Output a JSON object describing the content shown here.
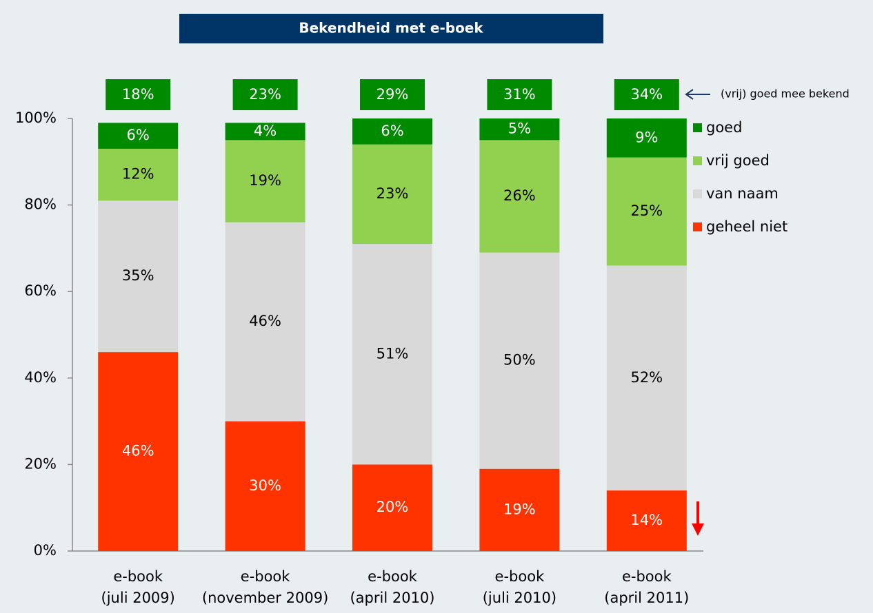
{
  "chart_data": {
    "type": "stacked_bar",
    "title": "Bekendheid met e-boek",
    "categories": [
      [
        "e-book",
        "(juli 2009)"
      ],
      [
        "e-book",
        "(november 2009)"
      ],
      [
        "e-book",
        "(april 2010)"
      ],
      [
        "e-book",
        "(juli 2010)"
      ],
      [
        "e-book",
        "(april 2011)"
      ]
    ],
    "series": [
      {
        "name": "geheel niet",
        "color": "#ff3300",
        "values": [
          46,
          30,
          20,
          19,
          14
        ],
        "value_labels": [
          "46%",
          "30%",
          "20%",
          "19%",
          "14%"
        ]
      },
      {
        "name": "van naam",
        "color": "#d9d9d9",
        "values": [
          35,
          46,
          51,
          50,
          52
        ],
        "value_labels": [
          "35%",
          "46%",
          "51%",
          "50%",
          "52%"
        ]
      },
      {
        "name": "vrij goed",
        "color": "#92d050",
        "values": [
          12,
          19,
          23,
          26,
          25
        ],
        "value_labels": [
          "12%",
          "19%",
          "23%",
          "26%",
          "25%"
        ]
      },
      {
        "name": "goed",
        "color": "#008a00",
        "values": [
          6,
          4,
          6,
          5,
          9
        ],
        "value_labels": [
          "6%",
          "4%",
          "6%",
          "5%",
          "9%"
        ]
      }
    ],
    "totals": {
      "values": [
        18,
        23,
        29,
        31,
        34
      ],
      "value_labels": [
        "18%",
        "23%",
        "29%",
        "31%",
        "34%"
      ],
      "color": "#008a00"
    },
    "annotation": "(vrij) goed mee bekend",
    "ylim": [
      0,
      100
    ],
    "yticks": [
      {
        "value": 0,
        "label": "0%"
      },
      {
        "value": 20,
        "label": "20%"
      },
      {
        "value": 40,
        "label": "40%"
      },
      {
        "value": 60,
        "label": "60%"
      },
      {
        "value": 80,
        "label": "80%"
      },
      {
        "value": 100,
        "label": "100%"
      }
    ],
    "legend": "right"
  }
}
